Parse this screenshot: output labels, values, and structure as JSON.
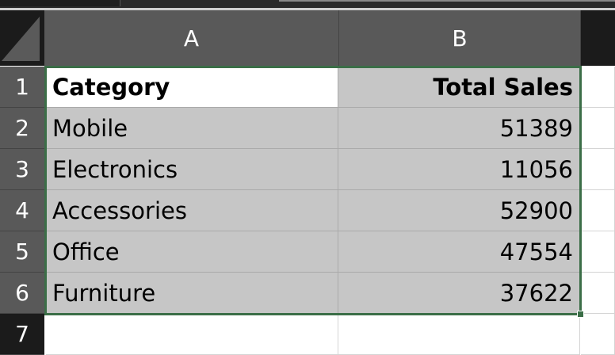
{
  "columns": [
    "A",
    "B"
  ],
  "rows": [
    "1",
    "2",
    "3",
    "4",
    "5",
    "6",
    "7"
  ],
  "table": {
    "headers": [
      "Category",
      "Total Sales"
    ],
    "data": [
      [
        "Mobile",
        "51389"
      ],
      [
        "Electronics",
        "11056"
      ],
      [
        "Accessories",
        "52900"
      ],
      [
        "Office",
        "47554"
      ],
      [
        "Furniture",
        "37622"
      ]
    ]
  },
  "colors": {
    "selection_border": "#3b6e47",
    "selected_fill": "#c6c6c6",
    "header_selected": "#595959"
  }
}
